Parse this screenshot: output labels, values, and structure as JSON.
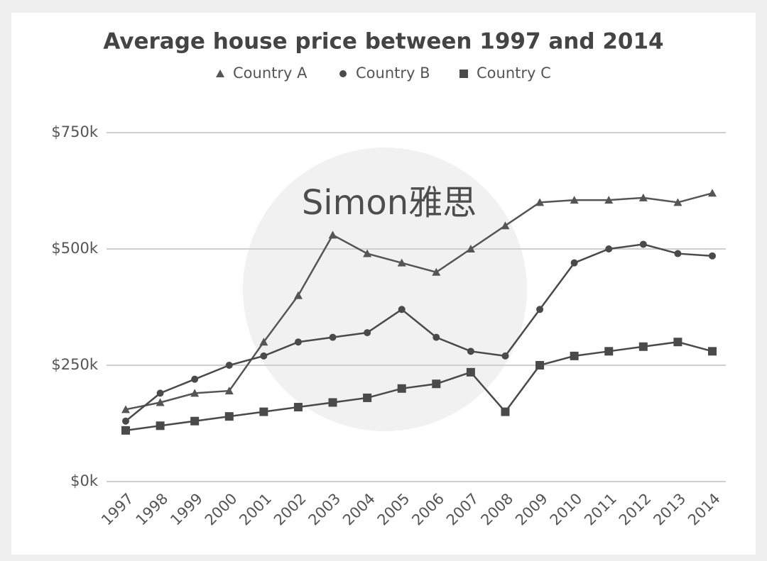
{
  "chart_data": {
    "type": "line",
    "title": "Average house price between 1997 and 2014",
    "watermark": "Simon雅思",
    "categories": [
      "1997",
      "1998",
      "1999",
      "2000",
      "2001",
      "2002",
      "2003",
      "2004",
      "2005",
      "2006",
      "2007",
      "2008",
      "2009",
      "2010",
      "2011",
      "2012",
      "2013",
      "2014"
    ],
    "series": [
      {
        "name": "Country A",
        "color": "#555555",
        "marker": "triangle",
        "values": [
          155000,
          170000,
          190000,
          195000,
          300000,
          400000,
          530000,
          490000,
          470000,
          450000,
          500000,
          550000,
          600000,
          605000,
          605000,
          610000,
          600000,
          620000
        ]
      },
      {
        "name": "Country B",
        "color": "#4a4a4a",
        "marker": "circle",
        "values": [
          130000,
          190000,
          220000,
          250000,
          270000,
          300000,
          310000,
          320000,
          370000,
          310000,
          280000,
          270000,
          370000,
          470000,
          500000,
          510000,
          490000,
          485000
        ]
      },
      {
        "name": "Country C",
        "color": "#4a4a4a",
        "marker": "square",
        "values": [
          110000,
          120000,
          130000,
          140000,
          150000,
          160000,
          170000,
          180000,
          200000,
          210000,
          235000,
          150000,
          250000,
          270000,
          280000,
          290000,
          300000,
          280000
        ]
      }
    ],
    "ylim": [
      0,
      750000
    ],
    "yticks": [
      {
        "value": 0,
        "label": "$0k"
      },
      {
        "value": 250000,
        "label": "$250k"
      },
      {
        "value": 500000,
        "label": "$500k"
      },
      {
        "value": 750000,
        "label": "$750k"
      }
    ],
    "grid": true,
    "legend": "top"
  }
}
